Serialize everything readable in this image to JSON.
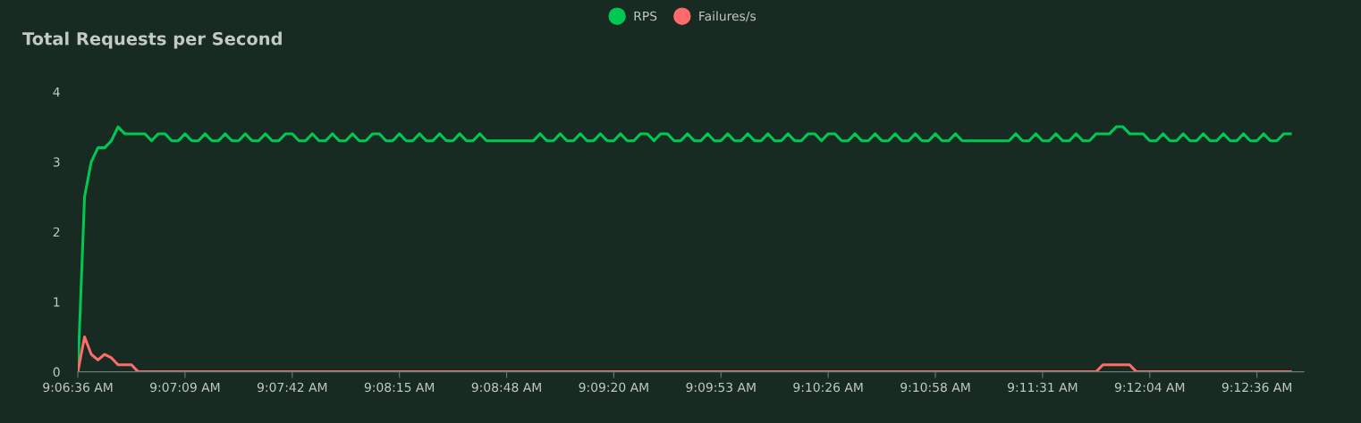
{
  "chart_data": {
    "type": "line",
    "title": "Total Requests per Second",
    "categories": [
      "9:06:36 AM",
      null,
      null,
      null,
      null,
      null,
      null,
      null,
      null,
      null,
      null,
      null,
      null,
      null,
      null,
      null,
      "9:07:09 AM",
      null,
      null,
      null,
      null,
      null,
      null,
      null,
      null,
      null,
      null,
      null,
      null,
      null,
      null,
      null,
      "9:07:42 AM",
      null,
      null,
      null,
      null,
      null,
      null,
      null,
      null,
      null,
      null,
      null,
      null,
      null,
      null,
      null,
      "9:08:15 AM",
      null,
      null,
      null,
      null,
      null,
      null,
      null,
      null,
      null,
      null,
      null,
      null,
      null,
      null,
      null,
      "9:08:48 AM",
      null,
      null,
      null,
      null,
      null,
      null,
      null,
      null,
      null,
      null,
      null,
      null,
      null,
      null,
      null,
      "9:09:20 AM",
      null,
      null,
      null,
      null,
      null,
      null,
      null,
      null,
      null,
      null,
      null,
      null,
      null,
      null,
      null,
      "9:09:53 AM",
      null,
      null,
      null,
      null,
      null,
      null,
      null,
      null,
      null,
      null,
      null,
      null,
      null,
      null,
      null,
      "9:10:26 AM",
      null,
      null,
      null,
      null,
      null,
      null,
      null,
      null,
      null,
      null,
      null,
      null,
      null,
      null,
      null,
      "9:10:58 AM",
      null,
      null,
      null,
      null,
      null,
      null,
      null,
      null,
      null,
      null,
      null,
      null,
      null,
      null,
      null,
      "9:11:31 AM",
      null,
      null,
      null,
      null,
      null,
      null,
      null,
      null,
      null,
      null,
      null,
      null,
      null,
      null,
      null,
      "9:12:04 AM",
      null,
      null,
      null,
      null,
      null,
      null,
      null,
      null,
      null,
      null,
      null,
      null,
      null,
      null,
      null,
      "9:12:36 AM",
      null,
      null,
      null,
      null,
      null,
      null,
      null
    ],
    "series": [
      {
        "name": "RPS",
        "color": "#00c853",
        "values": [
          0,
          2.5,
          3.0,
          3.2,
          3.2,
          3.3,
          3.5,
          3.4,
          3.4,
          3.4,
          3.4,
          3.3,
          3.4,
          3.4,
          3.3,
          3.3,
          3.4,
          3.3,
          3.3,
          3.4,
          3.3,
          3.3,
          3.4,
          3.3,
          3.3,
          3.4,
          3.3,
          3.3,
          3.4,
          3.3,
          3.3,
          3.4,
          3.4,
          3.3,
          3.3,
          3.4,
          3.3,
          3.3,
          3.4,
          3.3,
          3.3,
          3.4,
          3.3,
          3.3,
          3.4,
          3.4,
          3.3,
          3.3,
          3.4,
          3.3,
          3.3,
          3.4,
          3.3,
          3.3,
          3.4,
          3.3,
          3.3,
          3.4,
          3.3,
          3.3,
          3.4,
          3.3,
          3.3,
          3.3,
          3.3,
          3.3,
          3.3,
          3.3,
          3.3,
          3.4,
          3.3,
          3.3,
          3.4,
          3.3,
          3.3,
          3.4,
          3.3,
          3.3,
          3.4,
          3.3,
          3.3,
          3.4,
          3.3,
          3.3,
          3.4,
          3.4,
          3.3,
          3.4,
          3.4,
          3.3,
          3.3,
          3.4,
          3.3,
          3.3,
          3.4,
          3.3,
          3.3,
          3.4,
          3.3,
          3.3,
          3.4,
          3.3,
          3.3,
          3.4,
          3.3,
          3.3,
          3.4,
          3.3,
          3.3,
          3.4,
          3.4,
          3.3,
          3.4,
          3.4,
          3.3,
          3.3,
          3.4,
          3.3,
          3.3,
          3.4,
          3.3,
          3.3,
          3.4,
          3.3,
          3.3,
          3.4,
          3.3,
          3.3,
          3.4,
          3.3,
          3.3,
          3.4,
          3.3,
          3.3,
          3.3,
          3.3,
          3.3,
          3.3,
          3.3,
          3.3,
          3.4,
          3.3,
          3.3,
          3.4,
          3.3,
          3.3,
          3.4,
          3.3,
          3.3,
          3.4,
          3.3,
          3.3,
          3.4,
          3.4,
          3.4,
          3.5,
          3.5,
          3.4,
          3.4,
          3.4,
          3.3,
          3.3,
          3.4,
          3.3,
          3.3,
          3.4,
          3.3,
          3.3,
          3.4,
          3.3,
          3.3,
          3.4,
          3.3,
          3.3,
          3.4,
          3.3,
          3.3,
          3.4,
          3.3,
          3.3,
          3.4,
          3.4,
          null,
          null
        ]
      },
      {
        "name": "Failures/s",
        "color": "#ff6b6b",
        "values": [
          0,
          0.5,
          0.25,
          0.17,
          0.25,
          0.2,
          0.1,
          0.1,
          0.1,
          0,
          0,
          0,
          0,
          0,
          0,
          0,
          0,
          0,
          0,
          0,
          0,
          0,
          0,
          0,
          0,
          0,
          0,
          0,
          0,
          0,
          0,
          0,
          0,
          0,
          0,
          0,
          0,
          0,
          0,
          0,
          0,
          0,
          0,
          0,
          0,
          0,
          0,
          0,
          0,
          0,
          0,
          0,
          0,
          0,
          0,
          0,
          0,
          0,
          0,
          0,
          0,
          0,
          0,
          0,
          0,
          0,
          0,
          0,
          0,
          0,
          0,
          0,
          0,
          0,
          0,
          0,
          0,
          0,
          0,
          0,
          0,
          0,
          0,
          0,
          0,
          0,
          0,
          0,
          0,
          0,
          0,
          0,
          0,
          0,
          0,
          0,
          0,
          0,
          0,
          0,
          0,
          0,
          0,
          0,
          0,
          0,
          0,
          0,
          0,
          0,
          0,
          0,
          0,
          0,
          0,
          0,
          0,
          0,
          0,
          0,
          0,
          0,
          0,
          0,
          0,
          0,
          0,
          0,
          0,
          0,
          0,
          0,
          0,
          0,
          0,
          0,
          0,
          0,
          0,
          0,
          0,
          0,
          0,
          0,
          0,
          0,
          0,
          0,
          0,
          0,
          0,
          0,
          0,
          0.1,
          0.1,
          0.1,
          0.1,
          0.1,
          0,
          0,
          0,
          0,
          0,
          0,
          0,
          0,
          0,
          0,
          0,
          0,
          0,
          0,
          0,
          0,
          0,
          0,
          0,
          0,
          0,
          0,
          0,
          0,
          null,
          null
        ]
      }
    ],
    "ylim": [
      0,
      4
    ],
    "yticks": [
      0,
      1,
      2,
      3,
      4
    ],
    "grid": false,
    "legend": "top",
    "line_style": "solid"
  }
}
